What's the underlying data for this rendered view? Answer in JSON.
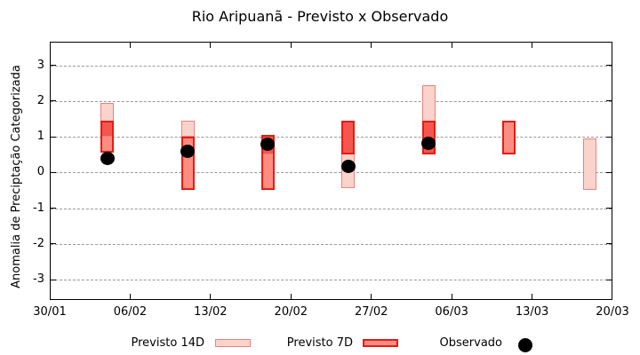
{
  "header": {
    "title": "Rio Aripuanã - Previsto x Observado"
  },
  "axes": {
    "y": {
      "label": "Anomalia de Preciptação Categorizada",
      "tick_labels": [
        "3",
        "2",
        "1",
        "0",
        "-1",
        "-2",
        "-3"
      ],
      "tick_values": [
        3,
        2,
        1,
        0,
        -1,
        -2,
        -3
      ]
    },
    "x": {
      "tick_labels": [
        "30/01",
        "06/02",
        "13/02",
        "20/02",
        "27/02",
        "06/03",
        "13/03",
        "20/03"
      ],
      "tick_days": [
        0,
        7,
        14,
        21,
        28,
        35,
        42,
        49
      ]
    }
  },
  "legend": {
    "items": [
      {
        "label": "Previsto 14D",
        "swatch": "previsto-14d-swatch"
      },
      {
        "label": "Previsto 7D",
        "swatch": "previsto-7d-swatch"
      },
      {
        "label": "Observado",
        "swatch": "observado-dot"
      }
    ]
  },
  "colors": {
    "pink_fill": "#fad3ca",
    "pink_border": "#f08080",
    "red_fill": "#fc8d83",
    "red_border": "#e81b12",
    "overlap_fill": "#f4564e",
    "observed": "#000000",
    "grid": "#999999"
  },
  "chart_data": {
    "type": "bar",
    "title": "Rio Aripuanã - Previsto x Observado",
    "xlabel": "",
    "ylabel": "Anomalia de Preciptação Categorizada",
    "ylim": [
      -3.57,
      3.66
    ],
    "x_axis_days": [
      0,
      49
    ],
    "grid": "horizontal-dashed",
    "legend_position": "bottom-center",
    "series": [
      {
        "name": "Previsto 14D",
        "type": "interval",
        "points": [
          {
            "date": "04/02",
            "day": 5,
            "lo": 1.0,
            "hi": 1.95
          },
          {
            "date": "11/02",
            "day": 12,
            "lo": 1.0,
            "hi": 1.45
          },
          {
            "date": "18/02",
            "day": 19,
            "lo": 0.5,
            "hi": 1.05
          },
          {
            "date": "25/02",
            "day": 26,
            "lo": -0.45,
            "hi": 1.45
          },
          {
            "date": "04/03",
            "day": 33,
            "lo": 0.5,
            "hi": 2.45
          },
          {
            "date": "18/03",
            "day": 47,
            "lo": -0.5,
            "hi": 0.95
          }
        ]
      },
      {
        "name": "Previsto 7D",
        "type": "interval",
        "points": [
          {
            "date": "04/02",
            "day": 5,
            "lo": 0.55,
            "hi": 1.45
          },
          {
            "date": "11/02",
            "day": 12,
            "lo": -0.5,
            "hi": 1.0
          },
          {
            "date": "18/02",
            "day": 19,
            "lo": -0.5,
            "hi": 1.05
          },
          {
            "date": "25/02",
            "day": 26,
            "lo": 0.5,
            "hi": 1.45
          },
          {
            "date": "04/03",
            "day": 33,
            "lo": 0.5,
            "hi": 1.45
          },
          {
            "date": "11/03",
            "day": 40,
            "lo": 0.5,
            "hi": 1.45
          }
        ]
      },
      {
        "name": "Observado",
        "type": "scatter",
        "points": [
          {
            "date": "04/02",
            "day": 5,
            "value": 0.4
          },
          {
            "date": "11/02",
            "day": 12,
            "value": 0.6
          },
          {
            "date": "18/02",
            "day": 19,
            "value": 0.78
          },
          {
            "date": "25/02",
            "day": 26,
            "value": 0.18
          },
          {
            "date": "04/03",
            "day": 33,
            "value": 0.82
          }
        ]
      }
    ]
  }
}
